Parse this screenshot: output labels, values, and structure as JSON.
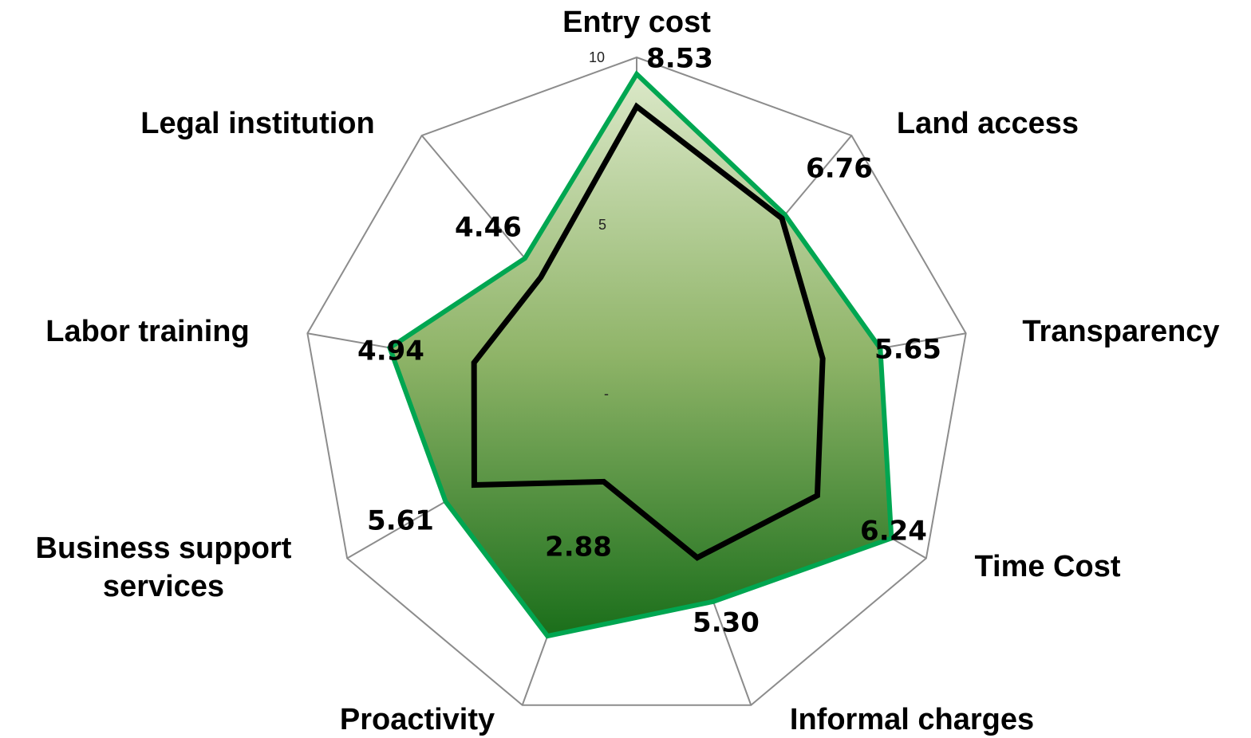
{
  "chart_data": {
    "type": "radar",
    "categories": [
      "Entry cost",
      "Land access",
      "Transparency",
      "Time Cost",
      "Informal charges",
      "Proactivity",
      "Business support services",
      "Labor training",
      "Legal institution"
    ],
    "series": [
      {
        "color": "#00a651",
        "values": [
          9.5,
          6.9,
          7.4,
          8.8,
          6.7,
          7.8,
          6.6,
          7.5,
          5.2
        ]
      },
      {
        "color": "#000000",
        "values": [
          8.53,
          6.76,
          5.65,
          6.24,
          5.3,
          2.88,
          5.61,
          4.94,
          4.46
        ],
        "value_labels": [
          "8.53",
          "6.76",
          "5.65",
          "6.24",
          "5.30",
          "2.88",
          "5.61",
          "4.94",
          "4.46"
        ]
      }
    ],
    "ylim": [
      0,
      10
    ],
    "yticks": [
      {
        "value": 0,
        "label": "-"
      },
      5,
      10
    ],
    "grid": true
  }
}
